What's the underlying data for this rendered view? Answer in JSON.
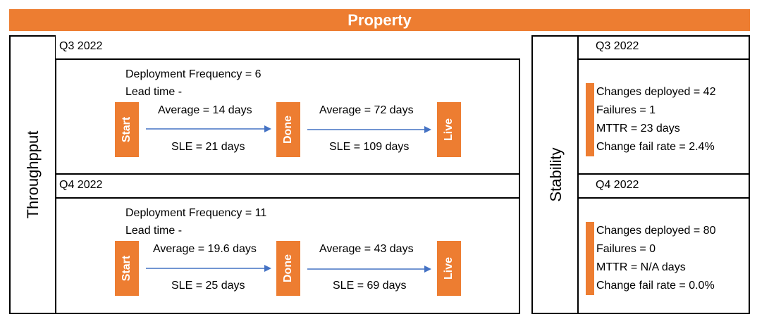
{
  "title": "Property",
  "throughput": {
    "label": "Throughpput",
    "quarters": [
      {
        "period": "Q3 2022",
        "deployment_frequency": "Deployment Frequency = 6",
        "lead_time": "Lead time -",
        "stages": [
          "Start",
          "Done",
          "Live"
        ],
        "start_to_done": {
          "average": "Average = 14 days",
          "sle": "SLE = 21 days"
        },
        "done_to_live": {
          "average": "Average = 72 days",
          "sle": "SLE = 109 days"
        }
      },
      {
        "period": "Q4 2022",
        "deployment_frequency": "Deployment Frequency = 11",
        "lead_time": "Lead time -",
        "stages": [
          "Start",
          "Done",
          "Live"
        ],
        "start_to_done": {
          "average": "Average = 19.6 days",
          "sle": "SLE = 25 days"
        },
        "done_to_live": {
          "average": "Average = 43 days",
          "sle": "SLE = 69 days"
        }
      }
    ]
  },
  "stability": {
    "label": "Stability",
    "quarters": [
      {
        "period": "Q3 2022",
        "changes_deployed": "Changes deployed = 42",
        "failures": "Failures = 1",
        "mttr": "MTTR = 23 days",
        "change_fail_rate": "Change fail rate = 2.4%"
      },
      {
        "period": "Q4 2022",
        "changes_deployed": "Changes deployed = 80",
        "failures": "Failures = 0",
        "mttr": "MTTR = N/A days",
        "change_fail_rate": "Change fail rate = 0.0%"
      }
    ]
  },
  "colors": {
    "accent": "#ed7d31",
    "arrow": "#4472c4",
    "border": "#000000"
  }
}
